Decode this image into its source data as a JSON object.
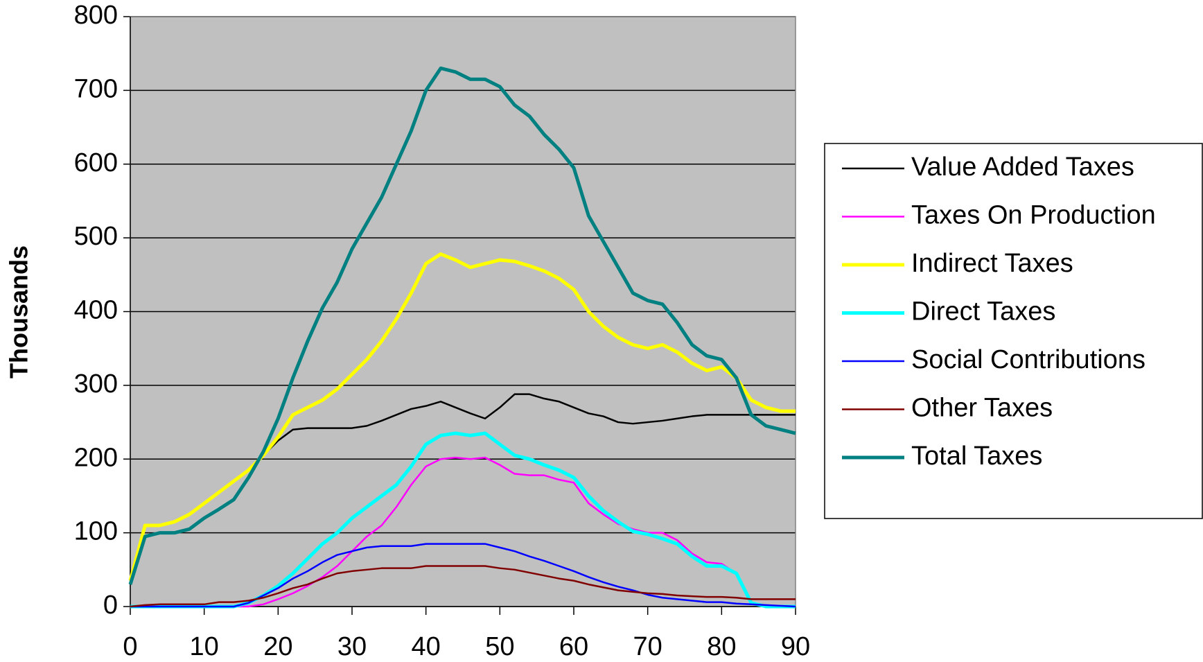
{
  "chart_data": {
    "type": "line",
    "y_label": "Thousands",
    "x": [
      0,
      2,
      4,
      6,
      8,
      10,
      12,
      14,
      16,
      18,
      20,
      22,
      24,
      26,
      28,
      30,
      32,
      34,
      36,
      38,
      40,
      42,
      44,
      46,
      48,
      50,
      52,
      54,
      56,
      58,
      60,
      62,
      64,
      66,
      68,
      70,
      72,
      74,
      76,
      78,
      80,
      82,
      84,
      86,
      88,
      90
    ],
    "xlim": [
      0,
      90
    ],
    "xticks": [
      0,
      10,
      20,
      30,
      40,
      50,
      60,
      70,
      80,
      90
    ],
    "ylim": [
      0,
      800
    ],
    "yticks": [
      0,
      100,
      200,
      300,
      400,
      500,
      600,
      700,
      800
    ],
    "grid": true,
    "legend": "right",
    "series": [
      {
        "name": "Value Added Taxes",
        "color": "#000000",
        "values": [
          35,
          110,
          110,
          115,
          125,
          140,
          155,
          170,
          185,
          205,
          225,
          240,
          242,
          242,
          242,
          242,
          245,
          252,
          260,
          268,
          272,
          278,
          270,
          262,
          255,
          270,
          288,
          288,
          282,
          278,
          270,
          262,
          258,
          250,
          248,
          250,
          252,
          255,
          258,
          260,
          260,
          260,
          260,
          260,
          260,
          260
        ]
      },
      {
        "name": "Taxes On Production",
        "color": "#ff00ff",
        "values": [
          0,
          0,
          0,
          0,
          0,
          0,
          0,
          0,
          0,
          3,
          10,
          18,
          28,
          40,
          55,
          75,
          95,
          110,
          135,
          165,
          190,
          200,
          202,
          200,
          202,
          192,
          180,
          178,
          178,
          172,
          168,
          140,
          125,
          112,
          105,
          100,
          100,
          90,
          72,
          60,
          58,
          45,
          5,
          0,
          0,
          0
        ]
      },
      {
        "name": "Indirect Taxes",
        "color": "#ffff00",
        "values": [
          35,
          110,
          110,
          115,
          125,
          140,
          155,
          170,
          185,
          205,
          230,
          260,
          270,
          280,
          295,
          315,
          335,
          360,
          390,
          425,
          465,
          478,
          470,
          460,
          465,
          470,
          468,
          462,
          455,
          445,
          430,
          400,
          380,
          365,
          355,
          350,
          355,
          345,
          330,
          320,
          325,
          310,
          280,
          270,
          265,
          265
        ]
      },
      {
        "name": "Direct Taxes",
        "color": "#00ffff",
        "values": [
          0,
          0,
          0,
          0,
          0,
          0,
          0,
          0,
          5,
          15,
          28,
          45,
          65,
          85,
          100,
          120,
          135,
          150,
          165,
          190,
          220,
          232,
          235,
          232,
          235,
          220,
          205,
          200,
          192,
          185,
          175,
          150,
          130,
          115,
          102,
          98,
          92,
          85,
          68,
          55,
          55,
          45,
          5,
          0,
          0,
          0
        ]
      },
      {
        "name": "Social Contributions",
        "color": "#0000ff",
        "values": [
          0,
          0,
          0,
          0,
          0,
          0,
          0,
          0,
          5,
          15,
          25,
          38,
          48,
          60,
          70,
          75,
          80,
          82,
          82,
          82,
          85,
          85,
          85,
          85,
          85,
          80,
          75,
          68,
          62,
          55,
          48,
          40,
          33,
          27,
          22,
          16,
          12,
          10,
          8,
          6,
          6,
          4,
          3,
          2,
          1,
          0
        ]
      },
      {
        "name": "Other Taxes",
        "color": "#800000",
        "values": [
          0,
          2,
          3,
          3,
          3,
          3,
          6,
          6,
          8,
          12,
          18,
          25,
          30,
          38,
          45,
          48,
          50,
          52,
          52,
          52,
          55,
          55,
          55,
          55,
          55,
          52,
          50,
          46,
          42,
          38,
          35,
          30,
          26,
          22,
          20,
          18,
          17,
          15,
          14,
          13,
          13,
          12,
          10,
          10,
          10,
          10
        ]
      },
      {
        "name": "Total Taxes",
        "color": "#008080",
        "values": [
          30,
          95,
          100,
          100,
          105,
          120,
          132,
          145,
          175,
          210,
          255,
          310,
          360,
          405,
          440,
          485,
          520,
          555,
          600,
          645,
          700,
          730,
          725,
          715,
          715,
          705,
          680,
          665,
          640,
          620,
          595,
          530,
          495,
          460,
          425,
          415,
          410,
          385,
          355,
          340,
          335,
          310,
          260,
          245,
          240,
          235
        ]
      }
    ]
  }
}
